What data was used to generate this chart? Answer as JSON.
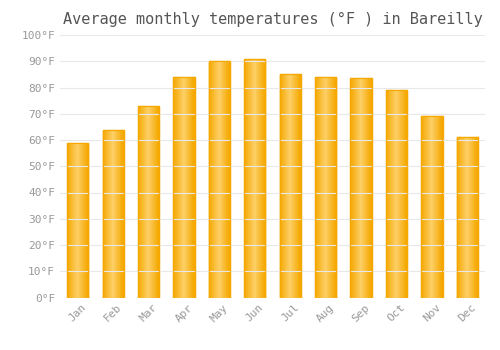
{
  "title": "Average monthly temperatures (°F ) in Bareilly",
  "months": [
    "Jan",
    "Feb",
    "Mar",
    "Apr",
    "May",
    "Jun",
    "Jul",
    "Aug",
    "Sep",
    "Oct",
    "Nov",
    "Dec"
  ],
  "values": [
    59,
    64,
    73,
    84,
    90,
    91,
    85,
    84,
    83.5,
    79,
    69,
    61
  ],
  "bar_color_center": "#FDD068",
  "bar_color_edge": "#F5A800",
  "background_color": "#FFFFFF",
  "ylim": [
    0,
    100
  ],
  "ytick_step": 10,
  "title_fontsize": 11,
  "tick_fontsize": 8,
  "tick_color": "#999999",
  "grid_color": "#E8E8E8",
  "title_color": "#555555",
  "bar_width": 0.6
}
